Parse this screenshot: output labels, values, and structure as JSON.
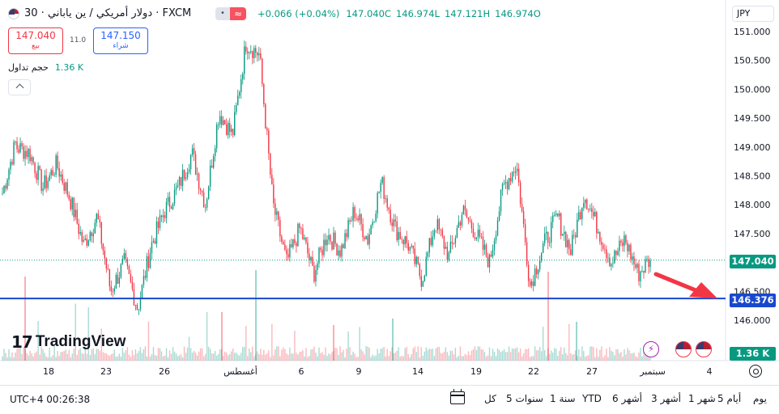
{
  "legend": {
    "title": "دولار أمريكي / ين ياباني · 30 · FXCM",
    "change": "+0.066 (+0.04%)",
    "open_label": "O",
    "open": "146.974",
    "high_label": "H",
    "high": "147.121",
    "low_label": "L",
    "low": "146.974",
    "close_label": "C",
    "close": "147.040"
  },
  "trade": {
    "sell_price": "147.040",
    "sell_label": "بيع",
    "buy_price": "147.150",
    "buy_label": "شراء",
    "spread": "11.0"
  },
  "volume_legend": {
    "label": "حجم تداول",
    "value": "1.36 K"
  },
  "currency": "JPY",
  "logo_text": "TradingView",
  "price_axis": {
    "ticks": [
      "151.000",
      "150.500",
      "150.000",
      "149.500",
      "149.000",
      "148.500",
      "148.000",
      "147.500",
      "146.500",
      "146.000"
    ],
    "current_price": "147.040",
    "hline_price": "146.376",
    "volume_last": "1.36 K"
  },
  "time_axis": {
    "ticks": [
      "18",
      "23",
      "26",
      "أغسطس",
      "6",
      "9",
      "14",
      "19",
      "22",
      "27",
      "سبتمبر",
      "4"
    ]
  },
  "bottom_bar": {
    "clock": "UTC+4 00:26:38",
    "ranges": [
      "يوم",
      "5 أيام",
      "1 شهر",
      "3 أشهر",
      "6 أشهر",
      "YTD",
      "1 سنة",
      "5 سنوات",
      "كل"
    ]
  },
  "colors": {
    "up": "#089981",
    "down": "#f23645",
    "hline": "#1848cc",
    "arrow": "#f23645"
  },
  "chart_data": {
    "type": "candlestick",
    "y_axis_range": [
      145.8,
      151.2
    ],
    "current_price": 147.04,
    "horizontal_line": 146.376,
    "price_path": [
      [
        148.2,
        149.1
      ],
      [
        149.0,
        148.9
      ],
      [
        148.9,
        148.3
      ],
      [
        148.3,
        148.7
      ],
      [
        148.7,
        148.1
      ],
      [
        148.1,
        147.3
      ],
      [
        147.3,
        147.8
      ],
      [
        147.8,
        146.5
      ],
      [
        146.5,
        147.0
      ],
      [
        147.0,
        146.2
      ],
      [
        146.2,
        147.3
      ],
      [
        147.3,
        147.9
      ],
      [
        147.9,
        148.3
      ],
      [
        148.3,
        148.9
      ],
      [
        148.9,
        148.0
      ],
      [
        148.0,
        149.6
      ],
      [
        149.6,
        149.2
      ],
      [
        149.2,
        150.8
      ],
      [
        150.8,
        150.6
      ],
      [
        150.6,
        148.0
      ],
      [
        148.0,
        147.0
      ],
      [
        147.0,
        147.6
      ],
      [
        147.6,
        146.8
      ],
      [
        146.8,
        147.5
      ],
      [
        147.5,
        147.2
      ],
      [
        147.2,
        147.9
      ],
      [
        147.9,
        147.4
      ],
      [
        147.4,
        148.4
      ],
      [
        148.4,
        147.6
      ],
      [
        147.6,
        147.3
      ],
      [
        147.3,
        146.7
      ],
      [
        146.7,
        147.7
      ],
      [
        147.7,
        147.1
      ],
      [
        147.1,
        147.9
      ],
      [
        147.9,
        147.5
      ],
      [
        147.5,
        147.0
      ],
      [
        147.0,
        148.3
      ],
      [
        148.3,
        148.7
      ],
      [
        148.7,
        146.6
      ],
      [
        146.6,
        147.3
      ],
      [
        147.3,
        147.8
      ],
      [
        147.8,
        147.2
      ],
      [
        147.2,
        148.2
      ],
      [
        148.2,
        147.6
      ],
      [
        147.6,
        147.0
      ],
      [
        147.0,
        147.4
      ],
      [
        147.4,
        146.8
      ],
      [
        146.8,
        147.1
      ]
    ],
    "volume_note": "volume histogram in lower pane, last value 1.36 K"
  }
}
